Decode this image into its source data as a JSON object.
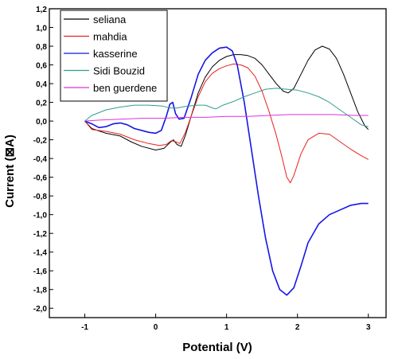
{
  "chart_data": {
    "type": "line",
    "xlabel": "Potential (V)",
    "ylabel": "Current (⊠A)",
    "xlim": [
      -1.5,
      3.25
    ],
    "ylim": [
      -2.1,
      1.2
    ],
    "x_ticks": [
      -1,
      0,
      1,
      2,
      3
    ],
    "x_tick_labels": [
      "-1",
      "0",
      "1",
      "2",
      "3"
    ],
    "y_ticks": [
      1.2,
      1.0,
      0.8,
      0.6,
      0.4,
      0.2,
      0.0,
      -0.2,
      -0.4,
      -0.6,
      -0.8,
      -1.0,
      -1.2,
      -1.4,
      -1.6,
      -1.8,
      -2.0
    ],
    "y_tick_labels": [
      "1,2",
      "1,0",
      "0,8",
      "0,6",
      "0,4",
      "0,2",
      "0,0",
      "-0,2",
      "-0,4",
      "-0,6",
      "-0,8",
      "-1,0",
      "-1,2",
      "-1,4",
      "-1,6",
      "-1,8",
      "-2,0"
    ],
    "legend_position": "top-left",
    "grid": false,
    "series": [
      {
        "name": "seliana",
        "color": "#000000",
        "points": [
          [
            -1.0,
            0.0
          ],
          [
            -0.9,
            -0.08
          ],
          [
            -0.7,
            -0.13
          ],
          [
            -0.5,
            -0.16
          ],
          [
            -0.35,
            -0.22
          ],
          [
            -0.2,
            -0.27
          ],
          [
            0.0,
            -0.31
          ],
          [
            0.12,
            -0.29
          ],
          [
            0.2,
            -0.23
          ],
          [
            0.25,
            -0.2
          ],
          [
            0.3,
            -0.25
          ],
          [
            0.36,
            -0.27
          ],
          [
            0.42,
            -0.15
          ],
          [
            0.5,
            0.05
          ],
          [
            0.6,
            0.3
          ],
          [
            0.7,
            0.47
          ],
          [
            0.8,
            0.58
          ],
          [
            0.9,
            0.65
          ],
          [
            1.0,
            0.69
          ],
          [
            1.1,
            0.71
          ],
          [
            1.2,
            0.71
          ],
          [
            1.3,
            0.7
          ],
          [
            1.4,
            0.67
          ],
          [
            1.5,
            0.6
          ],
          [
            1.6,
            0.5
          ],
          [
            1.7,
            0.4
          ],
          [
            1.8,
            0.32
          ],
          [
            1.87,
            0.3
          ],
          [
            1.95,
            0.35
          ],
          [
            2.05,
            0.5
          ],
          [
            2.15,
            0.65
          ],
          [
            2.25,
            0.76
          ],
          [
            2.35,
            0.8
          ],
          [
            2.45,
            0.77
          ],
          [
            2.55,
            0.67
          ],
          [
            2.65,
            0.5
          ],
          [
            2.75,
            0.3
          ],
          [
            2.85,
            0.1
          ],
          [
            2.95,
            -0.05
          ],
          [
            3.0,
            -0.09
          ]
        ]
      },
      {
        "name": "mahdia",
        "color": "#e8211e",
        "points": [
          [
            -1.0,
            0.0
          ],
          [
            -0.9,
            -0.09
          ],
          [
            -0.7,
            -0.11
          ],
          [
            -0.5,
            -0.14
          ],
          [
            -0.3,
            -0.2
          ],
          [
            -0.1,
            -0.24
          ],
          [
            0.05,
            -0.26
          ],
          [
            0.15,
            -0.25
          ],
          [
            0.22,
            -0.21
          ],
          [
            0.28,
            -0.22
          ],
          [
            0.34,
            -0.24
          ],
          [
            0.42,
            -0.12
          ],
          [
            0.5,
            0.05
          ],
          [
            0.6,
            0.26
          ],
          [
            0.7,
            0.42
          ],
          [
            0.8,
            0.51
          ],
          [
            0.9,
            0.56
          ],
          [
            1.0,
            0.59
          ],
          [
            1.1,
            0.61
          ],
          [
            1.2,
            0.6
          ],
          [
            1.3,
            0.57
          ],
          [
            1.4,
            0.48
          ],
          [
            1.5,
            0.32
          ],
          [
            1.6,
            0.1
          ],
          [
            1.7,
            -0.15
          ],
          [
            1.78,
            -0.38
          ],
          [
            1.85,
            -0.6
          ],
          [
            1.9,
            -0.66
          ],
          [
            1.95,
            -0.58
          ],
          [
            2.05,
            -0.35
          ],
          [
            2.15,
            -0.2
          ],
          [
            2.3,
            -0.13
          ],
          [
            2.45,
            -0.14
          ],
          [
            2.6,
            -0.22
          ],
          [
            2.75,
            -0.3
          ],
          [
            2.9,
            -0.37
          ],
          [
            3.0,
            -0.41
          ]
        ]
      },
      {
        "name": "kasserine",
        "color": "#1616e6",
        "points": [
          [
            -1.0,
            0.0
          ],
          [
            -0.9,
            -0.03
          ],
          [
            -0.8,
            -0.07
          ],
          [
            -0.7,
            -0.06
          ],
          [
            -0.6,
            -0.03
          ],
          [
            -0.5,
            -0.02
          ],
          [
            -0.4,
            -0.04
          ],
          [
            -0.3,
            -0.08
          ],
          [
            -0.2,
            -0.1
          ],
          [
            -0.1,
            -0.12
          ],
          [
            0.0,
            -0.13
          ],
          [
            0.08,
            -0.1
          ],
          [
            0.15,
            0.05
          ],
          [
            0.2,
            0.18
          ],
          [
            0.24,
            0.2
          ],
          [
            0.28,
            0.08
          ],
          [
            0.33,
            0.02
          ],
          [
            0.4,
            0.03
          ],
          [
            0.5,
            0.25
          ],
          [
            0.6,
            0.5
          ],
          [
            0.7,
            0.65
          ],
          [
            0.8,
            0.73
          ],
          [
            0.9,
            0.78
          ],
          [
            1.0,
            0.79
          ],
          [
            1.08,
            0.75
          ],
          [
            1.15,
            0.6
          ],
          [
            1.25,
            0.2
          ],
          [
            1.35,
            -0.3
          ],
          [
            1.45,
            -0.8
          ],
          [
            1.55,
            -1.25
          ],
          [
            1.65,
            -1.6
          ],
          [
            1.75,
            -1.8
          ],
          [
            1.85,
            -1.86
          ],
          [
            1.95,
            -1.78
          ],
          [
            2.05,
            -1.55
          ],
          [
            2.15,
            -1.3
          ],
          [
            2.3,
            -1.1
          ],
          [
            2.45,
            -1.0
          ],
          [
            2.6,
            -0.95
          ],
          [
            2.75,
            -0.9
          ],
          [
            2.9,
            -0.88
          ],
          [
            3.0,
            -0.88
          ]
        ]
      },
      {
        "name": "Sidi Bouzid",
        "color": "#2e9e8e",
        "points": [
          [
            -1.0,
            0.0
          ],
          [
            -0.9,
            0.06
          ],
          [
            -0.7,
            0.12
          ],
          [
            -0.5,
            0.15
          ],
          [
            -0.3,
            0.17
          ],
          [
            -0.1,
            0.17
          ],
          [
            0.1,
            0.16
          ],
          [
            0.2,
            0.14
          ],
          [
            0.3,
            0.14
          ],
          [
            0.45,
            0.16
          ],
          [
            0.6,
            0.17
          ],
          [
            0.7,
            0.17
          ],
          [
            0.8,
            0.14
          ],
          [
            0.85,
            0.13
          ],
          [
            0.95,
            0.17
          ],
          [
            1.1,
            0.21
          ],
          [
            1.25,
            0.26
          ],
          [
            1.4,
            0.3
          ],
          [
            1.55,
            0.34
          ],
          [
            1.7,
            0.35
          ],
          [
            1.85,
            0.34
          ],
          [
            2.0,
            0.33
          ],
          [
            2.15,
            0.3
          ],
          [
            2.3,
            0.26
          ],
          [
            2.45,
            0.2
          ],
          [
            2.6,
            0.12
          ],
          [
            2.75,
            0.04
          ],
          [
            2.9,
            -0.04
          ],
          [
            3.0,
            -0.06
          ]
        ]
      },
      {
        "name": "ben guerdene",
        "color": "#dd33dd",
        "points": [
          [
            -1.0,
            0.0
          ],
          [
            -0.8,
            0.01
          ],
          [
            -0.5,
            0.02
          ],
          [
            -0.2,
            0.03
          ],
          [
            0.1,
            0.03
          ],
          [
            0.4,
            0.04
          ],
          [
            0.7,
            0.04
          ],
          [
            1.0,
            0.05
          ],
          [
            1.3,
            0.05
          ],
          [
            1.6,
            0.06
          ],
          [
            1.9,
            0.07
          ],
          [
            2.2,
            0.07
          ],
          [
            2.5,
            0.07
          ],
          [
            2.8,
            0.06
          ],
          [
            3.0,
            0.06
          ]
        ]
      }
    ]
  }
}
